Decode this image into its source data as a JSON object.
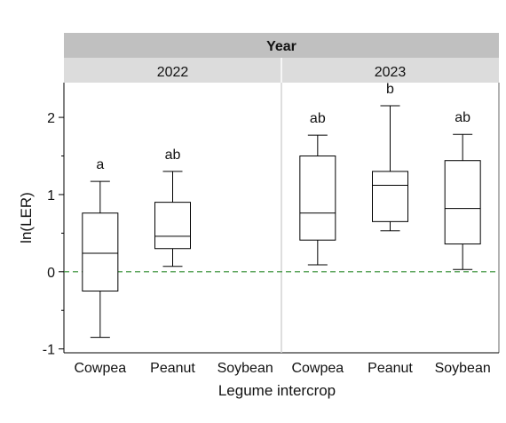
{
  "chart_data": {
    "type": "boxplot",
    "facet_title": "Year",
    "facets": [
      "2022",
      "2023"
    ],
    "xlabel": "Legume intercrop",
    "ylabel": "ln(LER)",
    "categories": [
      "Cowpea",
      "Peanut",
      "Soybean"
    ],
    "ylim": [
      -1.05,
      2.45
    ],
    "yticks": [
      -1,
      0,
      1,
      2
    ],
    "ytick_labels": [
      "-1",
      "0",
      "1",
      "2"
    ],
    "reference_line": {
      "y": 0,
      "style": "dashed",
      "color": "#2e8b2e"
    },
    "grid": false,
    "boxes": [
      {
        "facet": "2022",
        "category": "Cowpea",
        "min": -0.85,
        "q1": -0.25,
        "median": 0.24,
        "q3": 0.76,
        "max": 1.17,
        "letter": "a"
      },
      {
        "facet": "2022",
        "category": "Peanut",
        "min": 0.07,
        "q1": 0.3,
        "median": 0.46,
        "q3": 0.9,
        "max": 1.3,
        "letter": "ab"
      },
      {
        "facet": "2022",
        "category": "Soybean",
        "min": null,
        "q1": null,
        "median": null,
        "q3": null,
        "max": null,
        "letter": ""
      },
      {
        "facet": "2023",
        "category": "Cowpea",
        "min": 0.09,
        "q1": 0.41,
        "median": 0.76,
        "q3": 1.5,
        "max": 1.77,
        "letter": "ab"
      },
      {
        "facet": "2023",
        "category": "Peanut",
        "min": 0.53,
        "q1": 0.65,
        "median": 1.12,
        "q3": 1.3,
        "max": 2.15,
        "letter": "b"
      },
      {
        "facet": "2023",
        "category": "Soybean",
        "min": 0.03,
        "q1": 0.36,
        "median": 0.82,
        "q3": 1.44,
        "max": 1.78,
        "letter": "ab"
      }
    ],
    "colors": {
      "strip_dark": "#c0c0c0",
      "strip_light": "#dcdcdc",
      "box_stroke": "#000000",
      "divider": "#d3d3d3"
    }
  }
}
